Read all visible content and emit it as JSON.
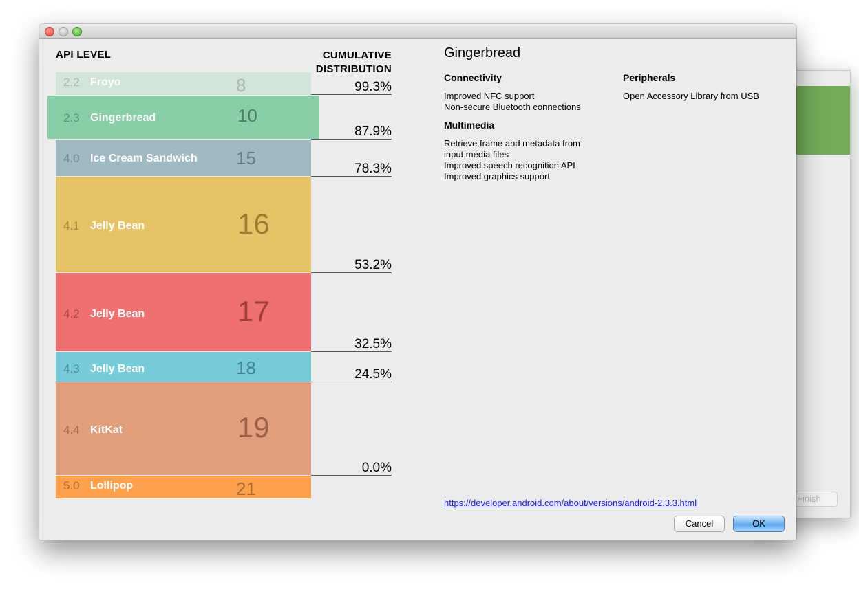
{
  "background_window": {
    "finish_label": "Finish"
  },
  "headers": {
    "api_level": "API LEVEL",
    "cumulative_line1": "CUMULATIVE",
    "cumulative_line2": "DISTRIBUTION"
  },
  "versions": [
    {
      "version": "2.2",
      "name": "Froyo",
      "api": "8",
      "color": "#d3e4d8",
      "ver_color": "#a8b7ac",
      "api_color": "#a8b7ac",
      "cumulative": "99.3%"
    },
    {
      "version": "2.3",
      "name": "Gingerbread",
      "api": "10",
      "color": "#88cea6",
      "ver_color": "#5d8f73",
      "api_color": "#4e8063",
      "cumulative": "87.9%"
    },
    {
      "version": "4.0",
      "name": "Ice Cream Sandwich",
      "api": "15",
      "color": "#9fbac1",
      "ver_color": "#718c93",
      "api_color": "#5e7b82",
      "cumulative": "78.3%"
    },
    {
      "version": "4.1",
      "name": "Jelly Bean",
      "api": "16",
      "color": "#e5c265",
      "ver_color": "#a98a3c",
      "api_color": "#9a7c33",
      "cumulative": "53.2%"
    },
    {
      "version": "4.2",
      "name": "Jelly Bean",
      "api": "17",
      "color": "#ef7070",
      "ver_color": "#a84747",
      "api_color": "#a23d3d",
      "cumulative": "32.5%"
    },
    {
      "version": "4.3",
      "name": "Jelly Bean",
      "api": "18",
      "color": "#77cbd9",
      "ver_color": "#4b8f9b",
      "api_color": "#3f8591",
      "cumulative": "24.5%"
    },
    {
      "version": "4.4",
      "name": "KitKat",
      "api": "19",
      "color": "#e39f7c",
      "ver_color": "#a46d52",
      "api_color": "#9a6146",
      "cumulative": "0.0%"
    },
    {
      "version": "5.0",
      "name": "Lollipop",
      "api": "21",
      "color": "#fea14d",
      "ver_color": "#b06b2d",
      "api_color": "#b06b2d"
    }
  ],
  "detail": {
    "title": "Gingerbread",
    "connectivity": {
      "title": "Connectivity",
      "items": [
        "Improved NFC support",
        "Non-secure Bluetooth connections"
      ]
    },
    "multimedia": {
      "title": "Multimedia",
      "items": [
        "Retrieve frame and metadata from",
        "input media files",
        "Improved speech recognition API",
        "Improved graphics support"
      ]
    },
    "peripherals": {
      "title": "Peripherals",
      "items": [
        "Open Accessory Library from USB"
      ]
    },
    "link": "https://developer.android.com/about/versions/android-2.3.3.html"
  },
  "buttons": {
    "cancel": "Cancel",
    "ok": "OK"
  }
}
